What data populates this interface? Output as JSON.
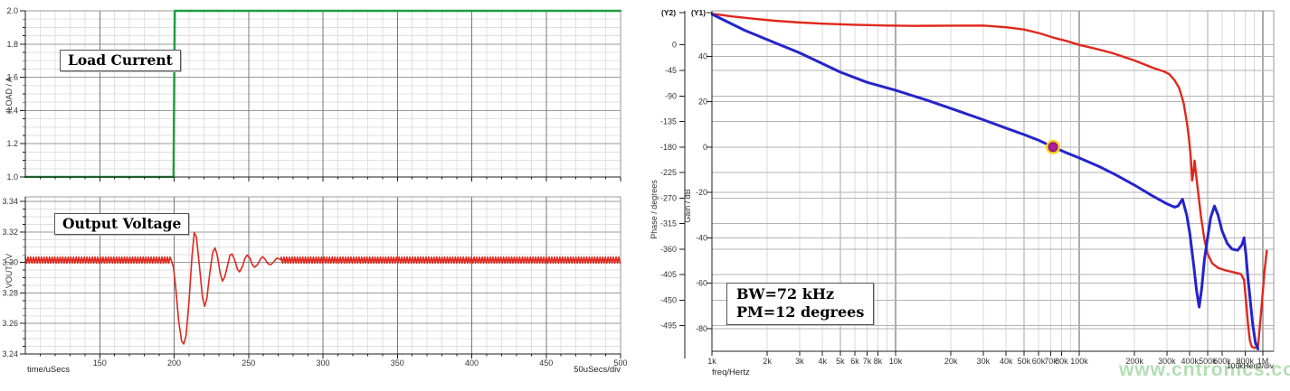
{
  "watermark": "www.cntronics.com",
  "colors": {
    "green_trace": "#1f9e3e",
    "red_trace": "#e0271c",
    "blue_trace": "#2424cb",
    "marker_fill": "#ab1d9b",
    "marker_ring": "#ffd21c",
    "grid_minor": "#e0e0e0",
    "grid_major_h": "#9a9a9a",
    "grid_major_v": "#777777",
    "bode_h_grid": "#b3b3b3",
    "bode_v_minor": "#d9d9d9",
    "bode_v_mid": "#a5a5a5",
    "bode_v_decade": "#5a5a5a",
    "spine": "#1c1c1c",
    "border": "#9a9a9a",
    "tick_text": "#333333"
  },
  "chart_data": [
    {
      "type": "line",
      "title": "Load Current",
      "ylabel": "ILOAD / A",
      "xlabel": "time/uSecs",
      "x_div_label": "50uSecs/div",
      "x_range": [
        100,
        500
      ],
      "x_ticks": [
        150,
        200,
        250,
        300,
        350,
        400,
        450,
        500
      ],
      "x_minor_step": 10,
      "y_range": [
        1.0,
        2.0
      ],
      "y_ticks": [
        1.0,
        1.2,
        1.4,
        1.6,
        1.8,
        2.0
      ],
      "y_minor_step": 0.05,
      "grid": true,
      "series": [
        {
          "name": "load-current",
          "color": "#1f9e3e",
          "points": [
            [
              100,
              1.0
            ],
            [
              199.6,
              1.0
            ],
            [
              200.4,
              2.0
            ],
            [
              500,
              2.0
            ]
          ]
        }
      ]
    },
    {
      "type": "line",
      "title": "Output Voltage",
      "ylabel": "VOUT / V",
      "x_range": [
        100,
        500
      ],
      "y_range": [
        3.24,
        3.343
      ],
      "y_ticks": [
        3.24,
        3.26,
        3.28,
        3.3,
        3.32,
        3.34
      ],
      "y_minor_step": 0.005,
      "grid": true,
      "series": [
        {
          "name": "output-voltage",
          "color": "#e0271c",
          "baseline": 3.3015,
          "ripple_amp": 0.002,
          "ripple_period_us": 1.8,
          "ripple_spans": [
            [
              100,
              198
            ],
            [
              272,
              500
            ]
          ],
          "ring_points": [
            [
              198,
              3.3015
            ],
            [
              199.5,
              3.297
            ],
            [
              201,
              3.284
            ],
            [
              203,
              3.262
            ],
            [
              205,
              3.2485
            ],
            [
              206.5,
              3.2465
            ],
            [
              208,
              3.252
            ],
            [
              210,
              3.2745
            ],
            [
              212,
              3.304
            ],
            [
              213.5,
              3.3195
            ],
            [
              215,
              3.3165
            ],
            [
              217,
              3.2975
            ],
            [
              219,
              3.2775
            ],
            [
              220.5,
              3.2712
            ],
            [
              222,
              3.2765
            ],
            [
              224,
              3.2935
            ],
            [
              226,
              3.3068
            ],
            [
              227.5,
              3.3095
            ],
            [
              229,
              3.3045
            ],
            [
              231,
              3.2925
            ],
            [
              232.5,
              3.2878
            ],
            [
              234,
              3.2905
            ],
            [
              236,
              3.2985
            ],
            [
              237.5,
              3.3048
            ],
            [
              239,
              3.3055
            ],
            [
              241,
              3.3008
            ],
            [
              242.5,
              3.2955
            ],
            [
              244,
              3.2938
            ],
            [
              246,
              3.2975
            ],
            [
              247.5,
              3.3025
            ],
            [
              249,
              3.3048
            ],
            [
              251,
              3.3028
            ],
            [
              252.5,
              3.2985
            ],
            [
              254,
              3.2968
            ],
            [
              256,
              3.2985
            ],
            [
              258,
              3.3022
            ],
            [
              259.5,
              3.3038
            ],
            [
              261,
              3.3022
            ],
            [
              263,
              3.2992
            ],
            [
              265,
              3.2985
            ],
            [
              267,
              3.3005
            ],
            [
              269,
              3.3028
            ],
            [
              271,
              3.3022
            ],
            [
              272,
              3.3015
            ]
          ]
        }
      ]
    },
    {
      "type": "line",
      "x_scale": "log",
      "xlabel": "freq/Hertz",
      "x_div_label": "100kHertz/div",
      "y2_tag": "(Y2)",
      "y1_tag": "(Y1)",
      "x_range": [
        1000,
        1146000
      ],
      "x_ticks": [
        [
          1000,
          "1k"
        ],
        [
          2000,
          "2k"
        ],
        [
          3000,
          "3k"
        ],
        [
          4000,
          "4k"
        ],
        [
          5000,
          "5k"
        ],
        [
          6000,
          "6k"
        ],
        [
          7000,
          "7k"
        ],
        [
          8000,
          "8k"
        ],
        [
          10000,
          "10k"
        ],
        [
          20000,
          "20k"
        ],
        [
          30000,
          "30k"
        ],
        [
          40000,
          "40k"
        ],
        [
          50000,
          "50k"
        ],
        [
          60000,
          "60k"
        ],
        [
          70000,
          "70k"
        ],
        [
          80000,
          "80k"
        ],
        [
          100000,
          "100k"
        ],
        [
          200000,
          "200k"
        ],
        [
          300000,
          "300k"
        ],
        [
          400000,
          "400k"
        ],
        [
          500000,
          "500k"
        ],
        [
          600000,
          "600k"
        ],
        [
          800000,
          "800k"
        ],
        [
          1000000,
          "1M"
        ]
      ],
      "phase_axis": {
        "label": "Phase / degrees",
        "range": [
          -540,
          60
        ],
        "ticks": [
          0,
          -45,
          -90,
          -135,
          -180,
          -225,
          -270,
          -315,
          -360,
          -405,
          -450,
          -495
        ]
      },
      "gain_axis": {
        "label": "Gain / dB",
        "range": [
          -90,
          60
        ],
        "ticks": [
          40,
          20,
          0,
          -20,
          -40,
          -60,
          -80
        ]
      },
      "series": [
        {
          "name": "phase",
          "axis": "phase",
          "color": "#e0271c",
          "points": [
            [
              1000,
              55
            ],
            [
              1300,
              50
            ],
            [
              1700,
              46
            ],
            [
              2200,
              42.5
            ],
            [
              3000,
              39.5
            ],
            [
              4000,
              37.5
            ],
            [
              6000,
              35.5
            ],
            [
              9000,
              34
            ],
            [
              13000,
              33.5
            ],
            [
              20000,
              33.8
            ],
            [
              30000,
              34
            ],
            [
              40000,
              31
            ],
            [
              50000,
              27
            ],
            [
              60000,
              21
            ],
            [
              72000,
              13
            ],
            [
              85000,
              7
            ],
            [
              100000,
              0
            ],
            [
              120000,
              -6
            ],
            [
              150000,
              -14
            ],
            [
              200000,
              -27.5
            ],
            [
              250000,
              -40
            ],
            [
              290000,
              -47
            ],
            [
              310000,
              -52
            ],
            [
              330000,
              -62
            ],
            [
              350000,
              -76
            ],
            [
              370000,
              -102
            ],
            [
              385000,
              -135
            ],
            [
              395000,
              -162
            ],
            [
              405000,
              -198
            ],
            [
              412000,
              -239
            ],
            [
              418000,
              -226
            ],
            [
              425000,
              -204
            ],
            [
              432000,
              -226
            ],
            [
              445000,
              -262
            ],
            [
              460000,
              -302
            ],
            [
              480000,
              -342
            ],
            [
              500000,
              -368
            ],
            [
              530000,
              -385
            ],
            [
              570000,
              -393
            ],
            [
              620000,
              -397
            ],
            [
              700000,
              -401
            ],
            [
              760000,
              -404
            ],
            [
              790000,
              -414
            ],
            [
              810000,
              -452
            ],
            [
              830000,
              -492
            ],
            [
              850000,
              -521
            ],
            [
              870000,
              -532
            ],
            [
              900000,
              -534
            ],
            [
              940000,
              -533
            ],
            [
              980000,
              -468
            ],
            [
              1020000,
              -400
            ],
            [
              1050000,
              -363
            ]
          ]
        },
        {
          "name": "gain",
          "axis": "gain",
          "color": "#2424cb",
          "points": [
            [
              1000,
              58.5
            ],
            [
              1500,
              51.5
            ],
            [
              2000,
              47.3
            ],
            [
              3000,
              41.5
            ],
            [
              5000,
              33
            ],
            [
              7000,
              28.5
            ],
            [
              10000,
              25
            ],
            [
              15000,
              20.5
            ],
            [
              20000,
              17
            ],
            [
              30000,
              12
            ],
            [
              40000,
              8.3
            ],
            [
              50000,
              5.5
            ],
            [
              60000,
              3
            ],
            [
              72000,
              0
            ],
            [
              85000,
              -2.5
            ],
            [
              100000,
              -4.8
            ],
            [
              130000,
              -8.8
            ],
            [
              160000,
              -12.5
            ],
            [
              200000,
              -16.8
            ],
            [
              250000,
              -21.5
            ],
            [
              300000,
              -25
            ],
            [
              330000,
              -26.5
            ],
            [
              345000,
              -26
            ],
            [
              365000,
              -23
            ],
            [
              385000,
              -30
            ],
            [
              400000,
              -38
            ],
            [
              420000,
              -52
            ],
            [
              435000,
              -63
            ],
            [
              450000,
              -70.5
            ],
            [
              465000,
              -62
            ],
            [
              480000,
              -50
            ],
            [
              500000,
              -40
            ],
            [
              520000,
              -31
            ],
            [
              545000,
              -26
            ],
            [
              570000,
              -30
            ],
            [
              600000,
              -37
            ],
            [
              640000,
              -42.5
            ],
            [
              680000,
              -45
            ],
            [
              730000,
              -45.5
            ],
            [
              770000,
              -43
            ],
            [
              790000,
              -40
            ],
            [
              810000,
              -48
            ],
            [
              830000,
              -58
            ],
            [
              850000,
              -66
            ],
            [
              880000,
              -78
            ],
            [
              910000,
              -86
            ],
            [
              940000,
              -89
            ]
          ]
        }
      ],
      "marker": {
        "freq": 72000,
        "gain_db": 0
      },
      "annotation": [
        "BW=72 kHz",
        "PM=12 degrees"
      ]
    }
  ]
}
